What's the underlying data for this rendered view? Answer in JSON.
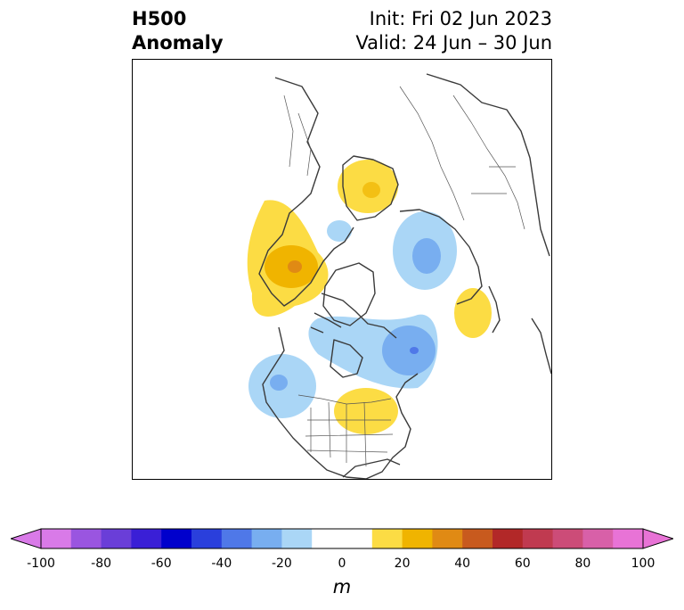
{
  "title": {
    "left_line1": "H500",
    "left_line2": "Anomaly",
    "right_line1": "Init: Fri 02 Jun 2023",
    "right_line2": "Valid: 24 Jun – 30 Jun"
  },
  "colorbar": {
    "unit": "m",
    "min": -100,
    "max": 100,
    "step": 10,
    "extend": "both",
    "ticks": [
      -100,
      -80,
      -60,
      -40,
      -20,
      0,
      20,
      40,
      60,
      80,
      100
    ],
    "tick_labels": [
      "-100",
      "-80",
      "-60",
      "-40",
      "-20",
      "0",
      "20",
      "40",
      "60",
      "80",
      "100"
    ],
    "colors": [
      "#d97ae8",
      "#9a55e0",
      "#6a3ed8",
      "#3a1fd6",
      "#0000cc",
      "#2a3fdc",
      "#4f78e8",
      "#78aef0",
      "#aad6f6",
      "#ffffff",
      "#ffffff",
      "#fcdc44",
      "#f0b400",
      "#e08a14",
      "#c85a1e",
      "#b22828",
      "#c03a50",
      "#cc4c78",
      "#d860a8",
      "#e873d6"
    ],
    "under_color": "#d97ae8",
    "over_color": "#e873d6"
  },
  "anomalies": [
    {
      "name": "Scandinavia ridge",
      "sign": "positive",
      "peak_m": 20
    },
    {
      "name": "Central Siberia trough",
      "sign": "negative",
      "peak_m": -20
    },
    {
      "name": "Sea of Okhotsk ridge",
      "sign": "positive",
      "peak_m": 20
    },
    {
      "name": "Western Europe / Atlantic ridge",
      "sign": "positive",
      "peak_m": 30
    },
    {
      "name": "Small Norwegian Sea trough",
      "sign": "negative",
      "peak_m": -10
    },
    {
      "name": "Canadian Arctic / Hudson Bay trough",
      "sign": "negative",
      "peak_m": -30
    },
    {
      "name": "Gulf of Alaska trough",
      "sign": "negative",
      "peak_m": -20
    },
    {
      "name": "Central United States ridge",
      "sign": "positive",
      "peak_m": 20
    }
  ]
}
